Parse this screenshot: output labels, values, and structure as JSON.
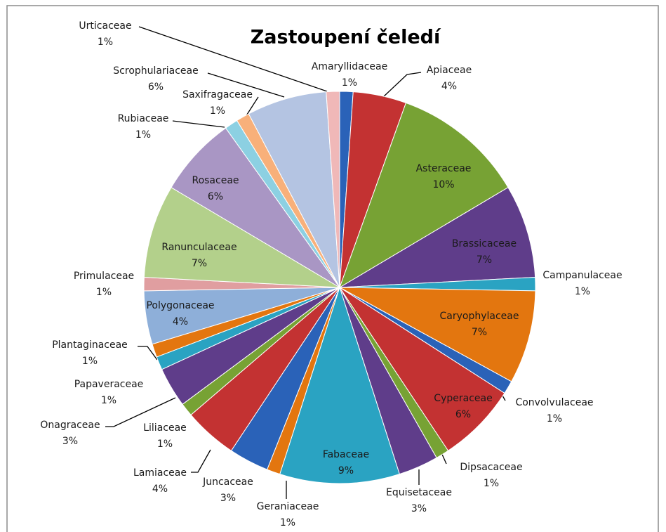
{
  "chart_data": {
    "type": "pie",
    "title": "Zastoupení čeledí",
    "categories": [
      "Amaryllidaceae",
      "Apiaceae",
      "Asteraceae",
      "Brassicaceae",
      "Campanulaceae",
      "Caryophylaceae",
      "Convolvulaceae",
      "Cyperaceae",
      "Dipsacaceae",
      "Equisetaceae",
      "Fabaceae",
      "Geraniaceae",
      "Juncaceae",
      "Lamiaceae",
      "Liliaceae",
      "Onagraceae",
      "Papaveraceae",
      "Plantaginaceae",
      "Polygonaceae",
      "Primulaceae",
      "Ranunculaceae",
      "Rosaceae",
      "Rubiaceae",
      "Saxifragaceae",
      "Scrophulariaceae",
      "Urticaceae"
    ],
    "values": [
      1,
      4,
      10,
      7,
      1,
      7,
      1,
      6,
      1,
      3,
      9,
      1,
      3,
      4,
      1,
      3,
      1,
      1,
      4,
      1,
      7,
      6,
      1,
      1,
      6,
      1
    ],
    "value_labels": [
      "1%",
      "4%",
      "10%",
      "7%",
      "1%",
      "7%",
      "1%",
      "6%",
      "1%",
      "3%",
      "9%",
      "1%",
      "3%",
      "4%",
      "1%",
      "3%",
      "1%",
      "1%",
      "4%",
      "1%",
      "7%",
      "6%",
      "1%",
      "1%",
      "6%",
      "1%"
    ],
    "colors": [
      "#2a62b8",
      "#c33232",
      "#77a234",
      "#5f3d8a",
      "#2aa3c2",
      "#e3760f",
      "#2a62b8",
      "#c33232",
      "#77a234",
      "#5f3d8a",
      "#2aa3c2",
      "#e3760f",
      "#2a62b8",
      "#c33232",
      "#77a234",
      "#5f3d8a",
      "#2aa3c2",
      "#e3760f",
      "#8eafd9",
      "#e09ea0",
      "#b3d08b",
      "#a996c4",
      "#8cd0e2",
      "#f8b07a",
      "#b4c4e2",
      "#f0b8b8"
    ]
  }
}
